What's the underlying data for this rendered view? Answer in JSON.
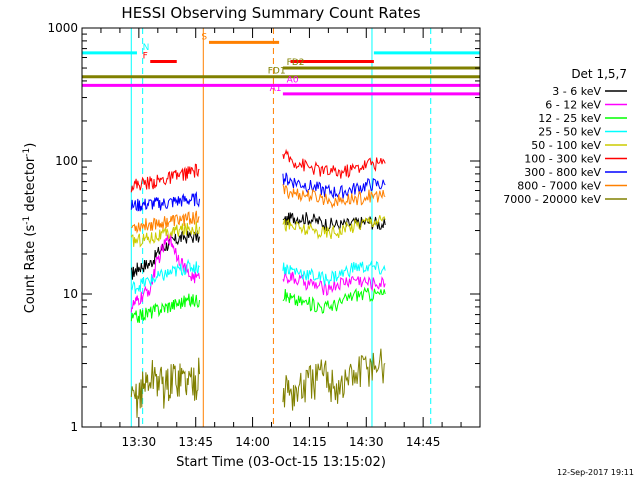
{
  "chart_data": {
    "type": "line",
    "title": "HESSI Observing Summary Count Rates",
    "xlabel": "Start Time (03-Oct-15 13:15:02)",
    "ylabel_main": "Count Rate (s",
    "ylabel_sup1": "-1",
    "ylabel_mid": " detector",
    "ylabel_sup2": "-1",
    "ylabel_end": ")",
    "yscale": "log",
    "ylim": [
      1,
      1000
    ],
    "xlim_minutes": [
      0,
      105
    ],
    "x_ticks": [
      {
        "label": "13:30",
        "min": 15
      },
      {
        "label": "13:45",
        "min": 30
      },
      {
        "label": "14:00",
        "min": 45
      },
      {
        "label": "14:15",
        "min": 60
      },
      {
        "label": "14:30",
        "min": 75
      },
      {
        "label": "14:45",
        "min": 90
      }
    ],
    "y_ticks": [
      {
        "label": "1",
        "value": 1
      },
      {
        "label": "10",
        "value": 10
      },
      {
        "label": "100",
        "value": 100
      },
      {
        "label": "1000",
        "value": 1000
      }
    ],
    "legend_title": "Det 1,5,7",
    "legend_placement": "right",
    "series": [
      {
        "name": "3 - 6 keV",
        "color": "#000000",
        "seg1": [
          [
            13,
            14
          ],
          [
            15,
            16
          ],
          [
            18,
            17
          ],
          [
            21,
            22
          ],
          [
            24,
            25
          ],
          [
            27,
            27
          ],
          [
            31,
            27
          ]
        ],
        "seg2": [
          [
            53,
            35
          ],
          [
            56,
            38
          ],
          [
            60,
            37
          ],
          [
            64,
            34
          ],
          [
            68,
            33
          ],
          [
            72,
            34
          ],
          [
            76,
            35
          ],
          [
            80,
            33
          ]
        ]
      },
      {
        "name": "6 - 12 keV",
        "color": "#ff00ff",
        "seg1": [
          [
            13,
            8
          ],
          [
            15,
            9
          ],
          [
            18,
            11
          ],
          [
            20,
            18
          ],
          [
            23,
            27
          ],
          [
            25,
            20
          ],
          [
            28,
            14
          ],
          [
            31,
            13
          ]
        ],
        "seg2": [
          [
            53,
            14
          ],
          [
            56,
            13
          ],
          [
            60,
            12
          ],
          [
            64,
            11
          ],
          [
            68,
            12
          ],
          [
            72,
            13
          ],
          [
            76,
            12
          ],
          [
            80,
            12
          ]
        ]
      },
      {
        "name": "12 - 25 keV",
        "color": "#00ff00",
        "seg1": [
          [
            13,
            6.5
          ],
          [
            16,
            7
          ],
          [
            19,
            7.5
          ],
          [
            22,
            8
          ],
          [
            25,
            8.5
          ],
          [
            28,
            9
          ],
          [
            31,
            9
          ]
        ],
        "seg2": [
          [
            53,
            10
          ],
          [
            56,
            9
          ],
          [
            60,
            8.5
          ],
          [
            64,
            8
          ],
          [
            68,
            8.5
          ],
          [
            72,
            10
          ],
          [
            76,
            10
          ],
          [
            80,
            10
          ]
        ]
      },
      {
        "name": "25 - 50 keV",
        "color": "#00ffff",
        "seg1": [
          [
            13,
            11
          ],
          [
            16,
            12
          ],
          [
            19,
            13
          ],
          [
            22,
            14
          ],
          [
            25,
            15
          ],
          [
            28,
            16
          ],
          [
            31,
            16
          ]
        ],
        "seg2": [
          [
            53,
            16
          ],
          [
            56,
            15
          ],
          [
            60,
            14
          ],
          [
            64,
            13
          ],
          [
            68,
            14
          ],
          [
            72,
            16
          ],
          [
            76,
            16
          ],
          [
            80,
            15
          ]
        ]
      },
      {
        "name": "50 - 100 keV",
        "color": "#cccc00",
        "seg1": [
          [
            13,
            25
          ],
          [
            16,
            26
          ],
          [
            19,
            27
          ],
          [
            22,
            28
          ],
          [
            25,
            30
          ],
          [
            28,
            31
          ],
          [
            31,
            32
          ]
        ],
        "seg2": [
          [
            53,
            34
          ],
          [
            56,
            32
          ],
          [
            60,
            30
          ],
          [
            64,
            29
          ],
          [
            68,
            30
          ],
          [
            72,
            33
          ],
          [
            76,
            36
          ],
          [
            80,
            36
          ]
        ]
      },
      {
        "name": "100 - 300 keV",
        "color": "#ff0000",
        "seg1": [
          [
            13,
            66
          ],
          [
            16,
            68
          ],
          [
            19,
            70
          ],
          [
            22,
            73
          ],
          [
            25,
            77
          ],
          [
            28,
            82
          ],
          [
            31,
            86
          ]
        ],
        "seg2": [
          [
            53,
            110
          ],
          [
            56,
            100
          ],
          [
            60,
            90
          ],
          [
            64,
            84
          ],
          [
            68,
            82
          ],
          [
            72,
            88
          ],
          [
            76,
            97
          ],
          [
            80,
            96
          ]
        ]
      },
      {
        "name": "300 - 800 keV",
        "color": "#0000ff",
        "seg1": [
          [
            13,
            46
          ],
          [
            16,
            47
          ],
          [
            19,
            48
          ],
          [
            22,
            48
          ],
          [
            25,
            50
          ],
          [
            28,
            51
          ],
          [
            31,
            52
          ]
        ],
        "seg2": [
          [
            53,
            75
          ],
          [
            56,
            70
          ],
          [
            60,
            65
          ],
          [
            64,
            60
          ],
          [
            68,
            58
          ],
          [
            72,
            62
          ],
          [
            76,
            67
          ],
          [
            80,
            66
          ]
        ]
      },
      {
        "name": "800 - 7000 keV",
        "color": "#ff8000",
        "seg1": [
          [
            13,
            32
          ],
          [
            16,
            33
          ],
          [
            19,
            34
          ],
          [
            22,
            35
          ],
          [
            25,
            36
          ],
          [
            28,
            37
          ],
          [
            31,
            38
          ]
        ],
        "seg2": [
          [
            53,
            60
          ],
          [
            56,
            57
          ],
          [
            60,
            55
          ],
          [
            64,
            52
          ],
          [
            68,
            50
          ],
          [
            72,
            52
          ],
          [
            76,
            55
          ],
          [
            80,
            54
          ]
        ]
      },
      {
        "name": "7000 - 20000 keV",
        "color": "#808000",
        "seg1": [
          [
            13,
            1.5
          ],
          [
            16,
            2
          ],
          [
            19,
            2.5
          ],
          [
            22,
            2
          ],
          [
            25,
            2.5
          ],
          [
            28,
            2.2
          ],
          [
            31,
            2.5
          ]
        ],
        "seg2": [
          [
            53,
            2
          ],
          [
            56,
            1.8
          ],
          [
            60,
            2.2
          ],
          [
            64,
            2.5
          ],
          [
            68,
            2
          ],
          [
            72,
            2.5
          ],
          [
            76,
            3
          ],
          [
            80,
            3
          ]
        ]
      }
    ],
    "flag_bars": [
      {
        "label": "N",
        "color": "#00ffff",
        "value": 650,
        "ranges": [
          [
            0,
            14.5
          ],
          [
            77,
            105
          ]
        ],
        "label_min": 16
      },
      {
        "label": "F",
        "color": "#ff0000",
        "value": 560,
        "ranges": [
          [
            18,
            25
          ],
          [
            55,
            77
          ]
        ],
        "label_min": 16
      },
      {
        "label": "S",
        "color": "#ff8000",
        "value": 780,
        "ranges": [
          [
            33.5,
            52
          ]
        ],
        "label_min": 31.5
      },
      {
        "label": "FD1",
        "color": "#808000",
        "value": 430,
        "ranges": [
          [
            0,
            105
          ]
        ],
        "label_min": 49
      },
      {
        "label": "FD2",
        "color": "#808000",
        "value": 500,
        "ranges": [
          [
            53,
            105
          ]
        ],
        "label_min": 54
      },
      {
        "label": "A0",
        "color": "#ff00ff",
        "value": 370,
        "ranges": [
          [
            0,
            105
          ]
        ],
        "label_min": 54
      },
      {
        "label": "A1",
        "color": "#ff00ff",
        "value": 320,
        "ranges": [
          [
            53,
            105
          ]
        ],
        "label_min": 49.5
      }
    ],
    "vertical_lines": [
      {
        "min": 0,
        "color": "#00ffff",
        "dash": false
      },
      {
        "min": 13,
        "color": "#00ffff",
        "dash": false
      },
      {
        "min": 16,
        "color": "#00ffff",
        "dash": true
      },
      {
        "min": 32,
        "color": "#ff8000",
        "dash": false
      },
      {
        "min": 50.5,
        "color": "#ff8000",
        "dash": true
      },
      {
        "min": 76.5,
        "color": "#00ffff",
        "dash": false
      },
      {
        "min": 92,
        "color": "#00ffff",
        "dash": true
      }
    ],
    "grid": false
  },
  "footer_timestamp": "12-Sep-2017 19:11"
}
